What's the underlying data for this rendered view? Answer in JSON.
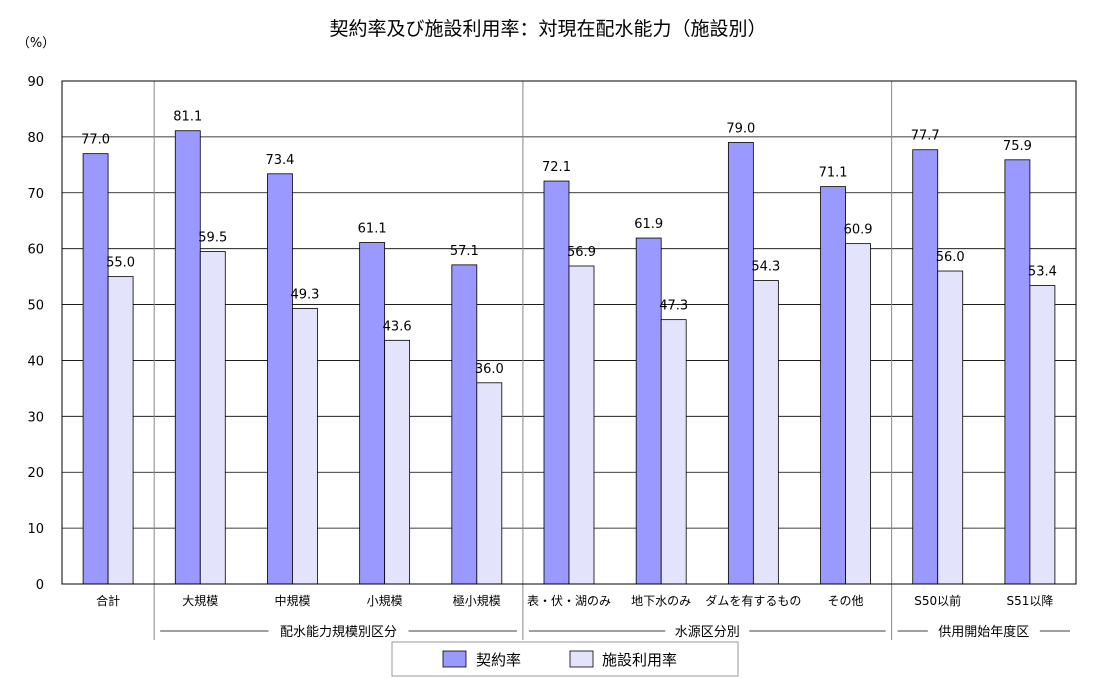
{
  "chart_data": {
    "type": "bar",
    "title": "契約率及び施設利用率：対現在配水能力（施設別）",
    "y_unit_label": "（%）",
    "ylim": [
      0,
      90
    ],
    "yticks": [
      "0",
      "10",
      "20",
      "30",
      "40",
      "50",
      "60",
      "70",
      "80",
      "90"
    ],
    "grid": true,
    "legend_position": "bottom-center",
    "categories": [
      "合計",
      "大規模",
      "中規模",
      "小規模",
      "極小規模",
      "表・伏・湖のみ",
      "地下水のみ",
      "ダムを有するもの",
      "その他",
      "S50以前",
      "S51以降"
    ],
    "groups": [
      {
        "label": "配水能力規模別区分"
      },
      {
        "label": "水源区分別"
      },
      {
        "label": "供用開始年度区"
      }
    ],
    "series": [
      {
        "name": "契約率",
        "color": "#9999ff",
        "values": [
          77.0,
          81.1,
          73.4,
          61.1,
          57.1,
          72.1,
          61.9,
          79.0,
          71.1,
          77.7,
          75.9
        ]
      },
      {
        "name": "施設利用率",
        "color": "#e3e3fb",
        "values": [
          55.0,
          59.5,
          49.3,
          43.6,
          36.0,
          56.9,
          47.3,
          54.3,
          60.9,
          56.0,
          53.4
        ]
      }
    ]
  }
}
